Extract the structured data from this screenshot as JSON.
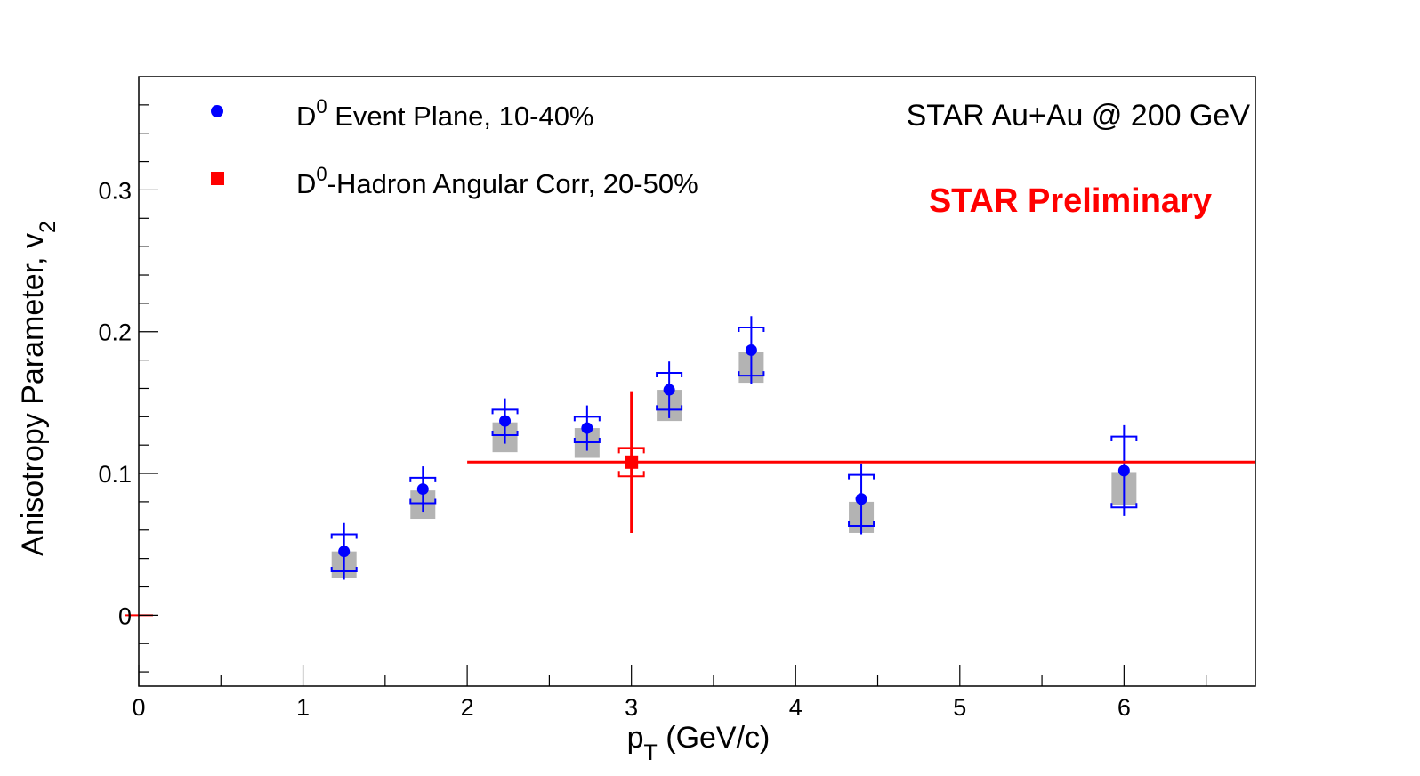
{
  "chart_data": {
    "type": "scatter",
    "header": "STAR  Au+Au @ 200 GeV",
    "watermark": "STAR Preliminary",
    "xlabel": {
      "main": "p",
      "sub": "T",
      "rest": " (GeV/c)"
    },
    "ylabel": {
      "main": "Anisotropy Parameter, v",
      "sub": "2"
    },
    "xlim": [
      0,
      6.8
    ],
    "ylim": [
      -0.05,
      0.38
    ],
    "x_ticks": [
      {
        "value": 0,
        "label": "0"
      },
      {
        "value": 1,
        "label": "1"
      },
      {
        "value": 2,
        "label": "2"
      },
      {
        "value": 3,
        "label": "3"
      },
      {
        "value": 4,
        "label": "4"
      },
      {
        "value": 5,
        "label": "5"
      },
      {
        "value": 6,
        "label": "6"
      }
    ],
    "y_ticks": [
      {
        "value": 0,
        "label": "0"
      },
      {
        "value": 0.1,
        "label": "0.1"
      },
      {
        "value": 0.2,
        "label": "0.2"
      },
      {
        "value": 0.3,
        "label": "0.3"
      }
    ],
    "grid": false,
    "legend_position": "top-left",
    "colors": {
      "event_plane": "#0000ff",
      "angular_corr": "#ff0000",
      "systematic_box": "#b3b3b3",
      "watermark": "#ff0000"
    },
    "series": [
      {
        "label_main": "D",
        "label_sup": "0",
        "label_rest": " Event Plane, 10-40%",
        "marker": "circle",
        "points": [
          {
            "x": 1.25,
            "y": 0.045,
            "stat_lo": 0.02,
            "stat_hi": 0.02,
            "sys_lo": 0.019,
            "sys_hi": 0.0,
            "box_lo": 0.026,
            "box_hi": 0.045
          },
          {
            "x": 1.73,
            "y": 0.089,
            "stat_lo": 0.016,
            "stat_hi": 0.016,
            "sys_lo": 0.006,
            "sys_hi": 0.005,
            "box_lo": 0.068,
            "box_hi": 0.088
          },
          {
            "x": 2.23,
            "y": 0.137,
            "stat_lo": 0.016,
            "stat_hi": 0.016,
            "sys_lo": 0.005,
            "sys_hi": 0.007,
            "box_lo": 0.115,
            "box_hi": 0.136
          },
          {
            "x": 2.73,
            "y": 0.132,
            "stat_lo": 0.016,
            "stat_hi": 0.016,
            "sys_lo": 0.008,
            "sys_hi": 0.01,
            "box_lo": 0.111,
            "box_hi": 0.132
          },
          {
            "x": 3.23,
            "y": 0.159,
            "stat_lo": 0.02,
            "stat_hi": 0.02,
            "sys_lo": 0.006,
            "sys_hi": 0.008,
            "box_lo": 0.137,
            "box_hi": 0.159
          },
          {
            "x": 3.73,
            "y": 0.187,
            "stat_lo": 0.024,
            "stat_hi": 0.024,
            "sys_lo": 0.017,
            "sys_hi": 0.02,
            "box_lo": 0.164,
            "box_hi": 0.186
          },
          {
            "x": 4.4,
            "y": 0.082,
            "stat_lo": 0.025,
            "stat_hi": 0.025,
            "sys_lo": 0.013,
            "sys_hi": 0.015,
            "box_lo": 0.058,
            "box_hi": 0.08
          },
          {
            "x": 6.0,
            "y": 0.102,
            "stat_lo": 0.032,
            "stat_hi": 0.032,
            "sys_lo": 0.024,
            "sys_hi": 0.025,
            "box_lo": 0.078,
            "box_hi": 0.101
          }
        ]
      },
      {
        "label_main": "D",
        "label_sup": "0",
        "label_rest": "-Hadron Angular Corr, 20-50%",
        "marker": "square",
        "points": [
          {
            "x": 3.0,
            "y": 0.108,
            "x_lo": 2.0,
            "x_hi": 6.8,
            "stat_lo": 0.05,
            "stat_hi": 0.05,
            "sys_lo": 0.01,
            "sys_hi": 0.01
          }
        ]
      }
    ]
  }
}
